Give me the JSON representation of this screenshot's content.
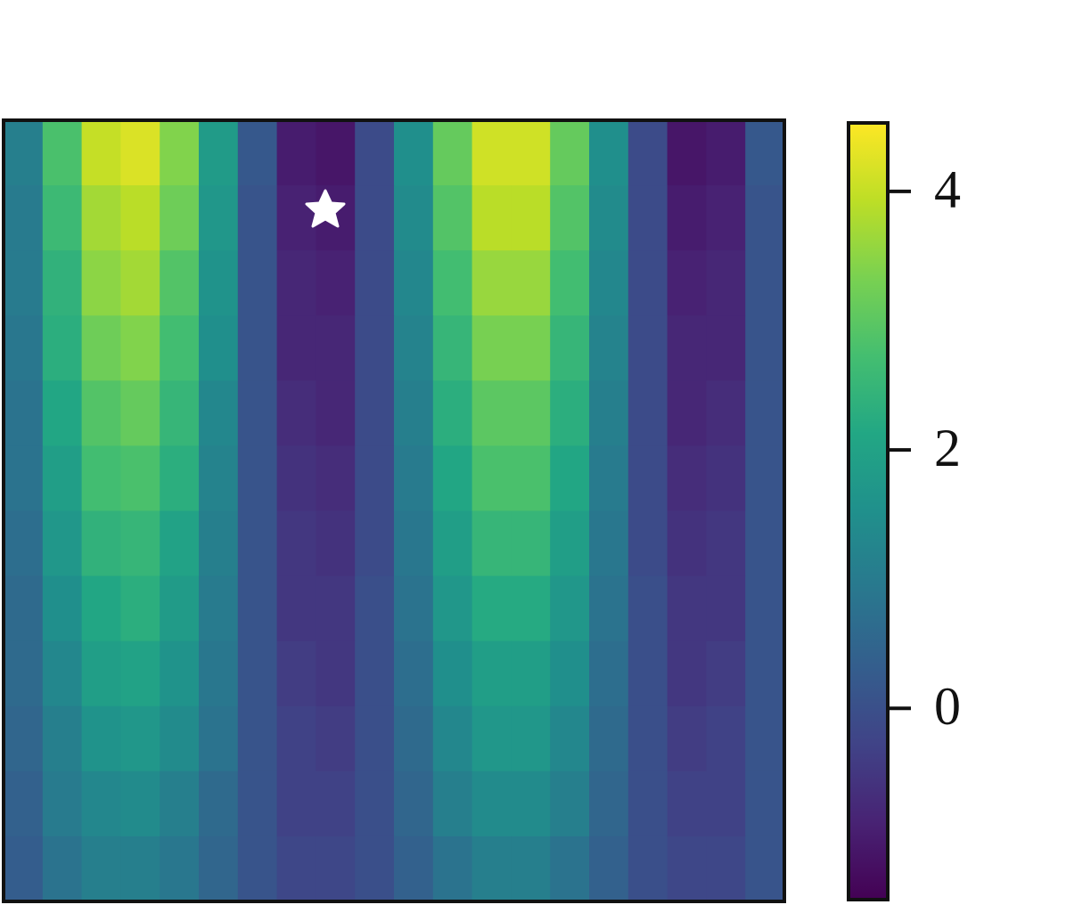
{
  "chart_data": {
    "type": "heatmap",
    "colormap": "viridis",
    "clim": [
      -1.48,
      4.53
    ],
    "colorbar_ticks": [
      0,
      2,
      4
    ],
    "values": [
      [
        1.1,
        2.8,
        4.0,
        4.2,
        3.4,
        1.8,
        0.2,
        -1.0,
        -1.1,
        -0.1,
        1.5,
        3.1,
        4.1,
        4.1,
        3.1,
        1.5,
        -0.1,
        -1.1,
        -1.0,
        0.2
      ],
      [
        1.0,
        2.6,
        3.7,
        3.9,
        3.2,
        1.7,
        0.1,
        -0.9,
        -1.0,
        -0.1,
        1.4,
        2.9,
        3.9,
        3.9,
        2.9,
        1.4,
        -0.1,
        -1.0,
        -0.9,
        0.1
      ],
      [
        1.0,
        2.4,
        3.5,
        3.7,
        2.9,
        1.6,
        0.1,
        -0.8,
        -0.9,
        -0.1,
        1.3,
        2.7,
        3.6,
        3.6,
        2.7,
        1.3,
        -0.1,
        -0.9,
        -0.8,
        0.1
      ],
      [
        0.9,
        2.3,
        3.2,
        3.4,
        2.7,
        1.5,
        0.1,
        -0.8,
        -0.8,
        -0.1,
        1.2,
        2.5,
        3.3,
        3.3,
        2.5,
        1.2,
        -0.1,
        -0.8,
        -0.8,
        0.1
      ],
      [
        0.8,
        2.1,
        2.9,
        3.1,
        2.5,
        1.3,
        0.1,
        -0.7,
        -0.8,
        -0.1,
        1.1,
        2.3,
        3.0,
        3.0,
        2.3,
        1.1,
        -0.1,
        -0.8,
        -0.7,
        0.1
      ],
      [
        0.8,
        1.9,
        2.7,
        2.8,
        2.3,
        1.2,
        0.1,
        -0.6,
        -0.7,
        -0.1,
        1.0,
        2.1,
        2.8,
        2.8,
        2.1,
        1.0,
        -0.1,
        -0.7,
        -0.6,
        0.1
      ],
      [
        0.7,
        1.7,
        2.4,
        2.5,
        2.0,
        1.1,
        0.1,
        -0.5,
        -0.6,
        -0.1,
        0.9,
        1.9,
        2.5,
        2.5,
        1.9,
        0.9,
        -0.1,
        -0.6,
        -0.5,
        0.1
      ],
      [
        0.6,
        1.5,
        2.1,
        2.3,
        1.8,
        1.0,
        0.1,
        -0.5,
        -0.5,
        0.0,
        0.8,
        1.7,
        2.2,
        2.2,
        1.7,
        0.8,
        0.0,
        -0.5,
        -0.5,
        0.1
      ],
      [
        0.6,
        1.3,
        1.9,
        2.0,
        1.6,
        0.9,
        0.1,
        -0.4,
        -0.5,
        0.0,
        0.7,
        1.5,
        1.9,
        1.9,
        1.5,
        0.7,
        0.0,
        -0.5,
        -0.4,
        0.1
      ],
      [
        0.5,
        1.1,
        1.6,
        1.7,
        1.4,
        0.8,
        0.1,
        -0.3,
        -0.4,
        0.0,
        0.6,
        1.3,
        1.7,
        1.7,
        1.3,
        0.6,
        0.0,
        -0.4,
        -0.3,
        0.1
      ],
      [
        0.4,
        1.0,
        1.3,
        1.4,
        1.1,
        0.6,
        0.1,
        -0.3,
        -0.3,
        0.0,
        0.5,
        1.1,
        1.4,
        1.4,
        1.1,
        0.5,
        0.0,
        -0.3,
        -0.3,
        0.1
      ],
      [
        0.3,
        0.8,
        1.1,
        1.1,
        0.9,
        0.5,
        0.1,
        -0.2,
        -0.2,
        0.0,
        0.4,
        0.8,
        1.1,
        1.1,
        0.8,
        0.4,
        0.0,
        -0.2,
        -0.2,
        0.1
      ]
    ]
  }
}
